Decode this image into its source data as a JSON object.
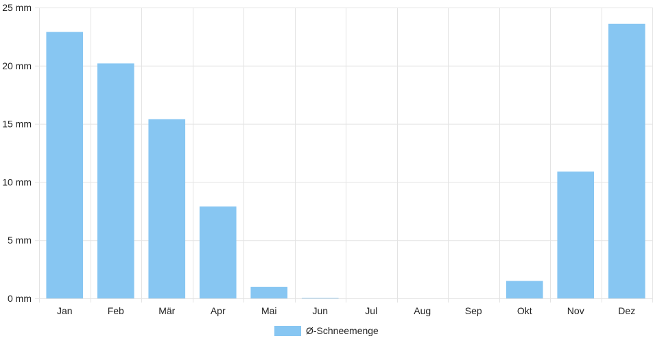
{
  "chart_data": {
    "type": "bar",
    "categories": [
      "Jan",
      "Feb",
      "Mär",
      "Apr",
      "Mai",
      "Jun",
      "Jul",
      "Aug",
      "Sep",
      "Okt",
      "Nov",
      "Dez"
    ],
    "series": [
      {
        "name": "Ø-Schneemenge",
        "values": [
          22.9,
          20.2,
          15.4,
          7.9,
          1.0,
          0.05,
          0,
          0,
          0,
          1.5,
          10.9,
          23.6
        ],
        "color": "#87C6F2"
      }
    ],
    "ylim": [
      0,
      25
    ],
    "yticks": [
      0,
      5,
      10,
      15,
      20,
      25
    ],
    "ytick_labels": [
      "0 mm",
      "5 mm",
      "10 mm",
      "15 mm",
      "20 mm",
      "25 mm"
    ],
    "grid": true,
    "legend_position": "bottom-center",
    "colors": {
      "grid": "#e3e3e3",
      "text": "#222222"
    }
  }
}
